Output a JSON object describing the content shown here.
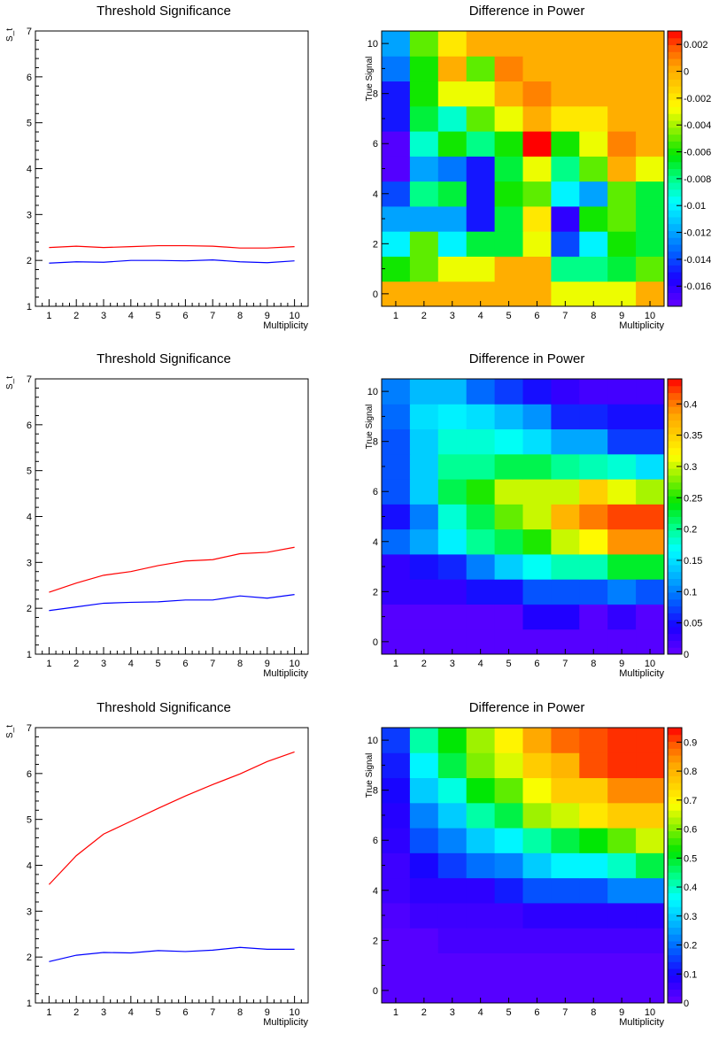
{
  "chart_data": [
    {
      "type": "line",
      "title": "Threshold Significance",
      "xlabel": "Multiplicity",
      "ylabel": "S_t",
      "xlim": [
        0.5,
        10.5
      ],
      "ylim": [
        1,
        7
      ],
      "xticks": [
        "1",
        "2",
        "3",
        "4",
        "5",
        "6",
        "7",
        "8",
        "9",
        "10"
      ],
      "yticks": [
        "1",
        "2",
        "3",
        "4",
        "5",
        "6",
        "7"
      ],
      "series": [
        {
          "color": "#ff0000",
          "x": [
            1,
            2,
            3,
            4,
            5,
            6,
            7,
            8,
            9,
            10
          ],
          "values": [
            2.28,
            2.31,
            2.28,
            2.3,
            2.32,
            2.32,
            2.31,
            2.27,
            2.27,
            2.3
          ]
        },
        {
          "color": "#0000ff",
          "x": [
            1,
            2,
            3,
            4,
            5,
            6,
            7,
            8,
            9,
            10
          ],
          "values": [
            1.94,
            1.97,
            1.96,
            2.0,
            2.0,
            1.99,
            2.01,
            1.97,
            1.95,
            1.99
          ]
        }
      ]
    },
    {
      "type": "heatmap",
      "title": "Difference in Power",
      "xlabel": "Multiplicity",
      "ylabel": "True Signal",
      "x": [
        1,
        2,
        3,
        4,
        5,
        6,
        7,
        8,
        9,
        10
      ],
      "y": [
        0,
        1,
        2,
        3,
        4,
        5,
        6,
        7,
        8,
        9,
        10
      ],
      "yticks": [
        "0",
        "2",
        "4",
        "6",
        "8",
        "10"
      ],
      "zlim": [
        -0.0175,
        0.003
      ],
      "colorbar_ticks": [
        "0.002",
        "0",
        "-0.002",
        "-0.004",
        "-0.006",
        "-0.008",
        "-0.01",
        "-0.012",
        "-0.014",
        "-0.016"
      ],
      "colorbar_tick_values": [
        0.002,
        0,
        -0.002,
        -0.004,
        -0.006,
        -0.008,
        -0.01,
        -0.012,
        -0.014,
        -0.016
      ],
      "z": [
        [
          0.0,
          0.0,
          0.0,
          0.0,
          0.0,
          0.0,
          -0.003,
          -0.003,
          -0.003,
          0.0
        ],
        [
          -0.006,
          -0.005,
          -0.003,
          -0.003,
          0.0,
          0.0,
          -0.008,
          -0.008,
          -0.007,
          -0.005
        ],
        [
          -0.01,
          -0.005,
          -0.01,
          -0.007,
          -0.007,
          -0.003,
          -0.014,
          -0.01,
          -0.006,
          -0.007
        ],
        [
          -0.012,
          -0.012,
          -0.012,
          -0.015,
          -0.007,
          -0.002,
          -0.016,
          -0.006,
          -0.005,
          -0.007
        ],
        [
          -0.014,
          -0.008,
          -0.007,
          -0.015,
          -0.006,
          -0.005,
          -0.01,
          -0.012,
          -0.005,
          -0.007
        ],
        [
          -0.017,
          -0.012,
          -0.013,
          -0.015,
          -0.007,
          -0.003,
          -0.008,
          -0.005,
          0.0,
          -0.003
        ],
        [
          -0.017,
          -0.009,
          -0.006,
          -0.008,
          -0.006,
          0.003,
          -0.006,
          -0.003,
          0.001,
          0.0
        ],
        [
          -0.015,
          -0.007,
          -0.009,
          -0.005,
          -0.003,
          0.0,
          -0.002,
          -0.002,
          0.0,
          0.0
        ],
        [
          -0.015,
          -0.006,
          -0.003,
          -0.003,
          0.0,
          0.001,
          0.0,
          0.0,
          0.0,
          0.0
        ],
        [
          -0.013,
          -0.006,
          0.0,
          -0.005,
          0.001,
          0.0,
          0.0,
          0.0,
          0.0,
          0.0
        ],
        [
          -0.012,
          -0.005,
          -0.002,
          0.0,
          0.0,
          0.0,
          0.0,
          0.0,
          0.0,
          0.0
        ]
      ]
    },
    {
      "type": "line",
      "title": "Threshold Significance",
      "xlabel": "Multiplicity",
      "ylabel": "S_t",
      "xlim": [
        0.5,
        10.5
      ],
      "ylim": [
        1,
        7
      ],
      "xticks": [
        "1",
        "2",
        "3",
        "4",
        "5",
        "6",
        "7",
        "8",
        "9",
        "10"
      ],
      "yticks": [
        "1",
        "2",
        "3",
        "4",
        "5",
        "6",
        "7"
      ],
      "series": [
        {
          "color": "#ff0000",
          "x": [
            1,
            2,
            3,
            4,
            5,
            6,
            7,
            8,
            9,
            10
          ],
          "values": [
            2.35,
            2.55,
            2.72,
            2.8,
            2.93,
            3.03,
            3.06,
            3.19,
            3.22,
            3.33
          ]
        },
        {
          "color": "#0000ff",
          "x": [
            1,
            2,
            3,
            4,
            5,
            6,
            7,
            8,
            9,
            10
          ],
          "values": [
            1.95,
            2.03,
            2.11,
            2.13,
            2.14,
            2.18,
            2.18,
            2.27,
            2.22,
            2.3
          ]
        }
      ]
    },
    {
      "type": "heatmap",
      "title": "Difference in Power",
      "xlabel": "Multiplicity",
      "ylabel": "True Signal",
      "x": [
        1,
        2,
        3,
        4,
        5,
        6,
        7,
        8,
        9,
        10
      ],
      "y": [
        0,
        1,
        2,
        3,
        4,
        5,
        6,
        7,
        8,
        9,
        10
      ],
      "yticks": [
        "0",
        "2",
        "4",
        "6",
        "8",
        "10"
      ],
      "zlim": [
        0,
        0.44
      ],
      "colorbar_ticks": [
        "0",
        "0.05",
        "0.1",
        "0.15",
        "0.2",
        "0.25",
        "0.3",
        "0.35",
        "0.4"
      ],
      "colorbar_tick_values": [
        0,
        0.05,
        0.1,
        0.15,
        0.2,
        0.25,
        0.3,
        0.35,
        0.4
      ],
      "z": [
        [
          0.01,
          0.01,
          0.01,
          0.01,
          0.01,
          0.01,
          0.01,
          0.01,
          0.01,
          0.01
        ],
        [
          0.01,
          0.01,
          0.01,
          0.01,
          0.01,
          0.04,
          0.04,
          0.01,
          0.03,
          0.01
        ],
        [
          0.03,
          0.03,
          0.03,
          0.05,
          0.05,
          0.08,
          0.08,
          0.08,
          0.1,
          0.08
        ],
        [
          0.03,
          0.05,
          0.06,
          0.1,
          0.14,
          0.17,
          0.19,
          0.19,
          0.23,
          0.23
        ],
        [
          0.09,
          0.12,
          0.16,
          0.2,
          0.22,
          0.25,
          0.3,
          0.32,
          0.39,
          0.39
        ],
        [
          0.05,
          0.1,
          0.18,
          0.22,
          0.27,
          0.3,
          0.37,
          0.4,
          0.42,
          0.42
        ],
        [
          0.08,
          0.14,
          0.22,
          0.25,
          0.3,
          0.3,
          0.3,
          0.35,
          0.31,
          0.29
        ],
        [
          0.08,
          0.14,
          0.2,
          0.2,
          0.22,
          0.22,
          0.2,
          0.19,
          0.18,
          0.15
        ],
        [
          0.08,
          0.14,
          0.18,
          0.18,
          0.17,
          0.15,
          0.12,
          0.12,
          0.07,
          0.07
        ],
        [
          0.09,
          0.15,
          0.16,
          0.15,
          0.13,
          0.11,
          0.06,
          0.06,
          0.05,
          0.05
        ],
        [
          0.1,
          0.13,
          0.13,
          0.09,
          0.07,
          0.05,
          0.03,
          0.02,
          0.02,
          0.02
        ]
      ]
    },
    {
      "type": "line",
      "title": "Threshold Significance",
      "xlabel": "Multiplicity",
      "ylabel": "S_t",
      "xlim": [
        0.5,
        10.5
      ],
      "ylim": [
        1,
        7
      ],
      "xticks": [
        "1",
        "2",
        "3",
        "4",
        "5",
        "6",
        "7",
        "8",
        "9",
        "10"
      ],
      "yticks": [
        "1",
        "2",
        "3",
        "4",
        "5",
        "6",
        "7"
      ],
      "series": [
        {
          "color": "#ff0000",
          "x": [
            1,
            2,
            3,
            4,
            5,
            6,
            7,
            8,
            9,
            10
          ],
          "values": [
            3.58,
            4.21,
            4.68,
            4.96,
            5.24,
            5.51,
            5.76,
            5.99,
            6.26,
            6.47
          ]
        },
        {
          "color": "#0000ff",
          "x": [
            1,
            2,
            3,
            4,
            5,
            6,
            7,
            8,
            9,
            10
          ],
          "values": [
            1.9,
            2.04,
            2.1,
            2.09,
            2.14,
            2.12,
            2.15,
            2.21,
            2.17,
            2.17
          ]
        }
      ]
    },
    {
      "type": "heatmap",
      "title": "Difference in Power",
      "xlabel": "Multiplicity",
      "ylabel": "True Signal",
      "x": [
        1,
        2,
        3,
        4,
        5,
        6,
        7,
        8,
        9,
        10
      ],
      "y": [
        0,
        1,
        2,
        3,
        4,
        5,
        6,
        7,
        8,
        9,
        10
      ],
      "yticks": [
        "0",
        "2",
        "4",
        "6",
        "8",
        "10"
      ],
      "zlim": [
        0,
        0.95
      ],
      "colorbar_ticks": [
        "0",
        "0.1",
        "0.2",
        "0.3",
        "0.4",
        "0.5",
        "0.6",
        "0.7",
        "0.8",
        "0.9"
      ],
      "colorbar_tick_values": [
        0,
        0.1,
        0.2,
        0.3,
        0.4,
        0.5,
        0.6,
        0.7,
        0.8,
        0.9
      ],
      "z": [
        [
          0.02,
          0.02,
          0.02,
          0.02,
          0.02,
          0.02,
          0.02,
          0.02,
          0.02,
          0.02
        ],
        [
          0.02,
          0.02,
          0.02,
          0.02,
          0.02,
          0.02,
          0.02,
          0.02,
          0.02,
          0.02
        ],
        [
          0.02,
          0.02,
          0.04,
          0.04,
          0.04,
          0.04,
          0.04,
          0.04,
          0.04,
          0.04
        ],
        [
          0.03,
          0.05,
          0.05,
          0.05,
          0.05,
          0.07,
          0.07,
          0.07,
          0.07,
          0.07
        ],
        [
          0.05,
          0.07,
          0.07,
          0.07,
          0.12,
          0.17,
          0.17,
          0.17,
          0.22,
          0.22
        ],
        [
          0.05,
          0.1,
          0.15,
          0.2,
          0.22,
          0.3,
          0.35,
          0.35,
          0.4,
          0.48
        ],
        [
          0.07,
          0.17,
          0.22,
          0.3,
          0.35,
          0.42,
          0.48,
          0.52,
          0.58,
          0.65
        ],
        [
          0.08,
          0.22,
          0.3,
          0.42,
          0.48,
          0.62,
          0.65,
          0.72,
          0.76,
          0.76
        ],
        [
          0.1,
          0.3,
          0.38,
          0.52,
          0.58,
          0.68,
          0.76,
          0.76,
          0.85,
          0.85
        ],
        [
          0.12,
          0.35,
          0.48,
          0.6,
          0.66,
          0.76,
          0.8,
          0.9,
          0.92,
          0.92
        ],
        [
          0.15,
          0.42,
          0.52,
          0.62,
          0.7,
          0.82,
          0.88,
          0.9,
          0.92,
          0.92
        ]
      ]
    }
  ]
}
